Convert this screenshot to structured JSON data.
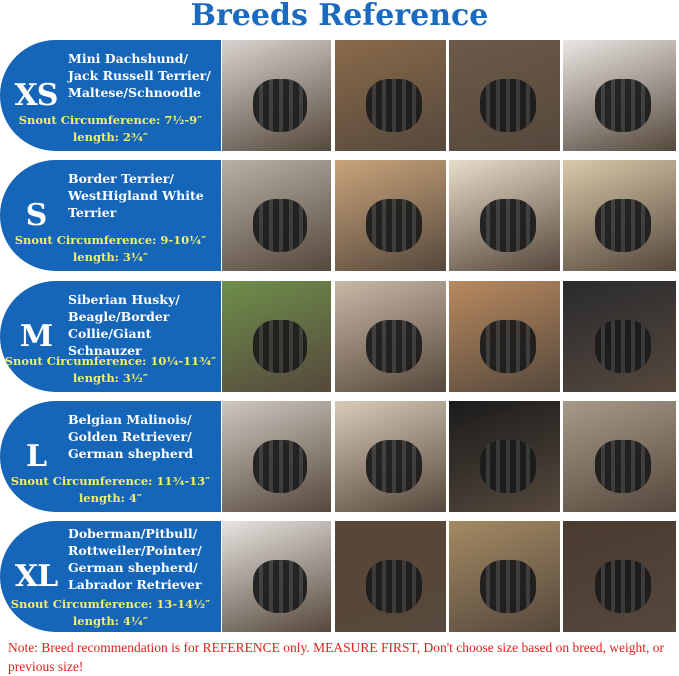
{
  "title": "Breeds Reference",
  "colors": {
    "panel": "#1565b8",
    "title": "#1a6ac0",
    "snout_text": "#f2ee6e",
    "note": "#e0201c"
  },
  "rows": [
    {
      "size": "XS",
      "breeds": [
        "Mini Dachshund/",
        "Jack Russell Terrier/",
        "Maltese/Schnoodle"
      ],
      "snout": "Snout Circumference: 7½-9″",
      "length": "length: 2¾″"
    },
    {
      "size": "S",
      "breeds": [
        "Border Terrier/",
        "WestHigland White",
        "Terrier"
      ],
      "snout": "Snout Circumference: 9-10¼″",
      "length": "length: 3¼″"
    },
    {
      "size": "M",
      "breeds": [
        "Siberian Husky/",
        "Beagle/Border",
        "Collie/Giant Schnauzer"
      ],
      "snout": "Snout Circumference: 10¼-11¾″",
      "length": "length: 3½″"
    },
    {
      "size": "L",
      "breeds": [
        "Belgian Malinois/",
        "Golden Retriever/",
        "German shepherd"
      ],
      "snout": "Snout Circumference: 11¾-13″",
      "length": "length: 4″"
    },
    {
      "size": "XL",
      "breeds": [
        "Doberman/Pitbull/",
        "Rottweiler/Pointer/",
        "German shepherd/",
        "Labrador Retriever"
      ],
      "snout": "Snout Circumference: 13-14½″",
      "length": "length: 4¼″"
    }
  ],
  "note": "Note: Breed recommendation is for REFERENCE only. MEASURE FIRST, Don't choose size based on breed, weight, or previous size!"
}
